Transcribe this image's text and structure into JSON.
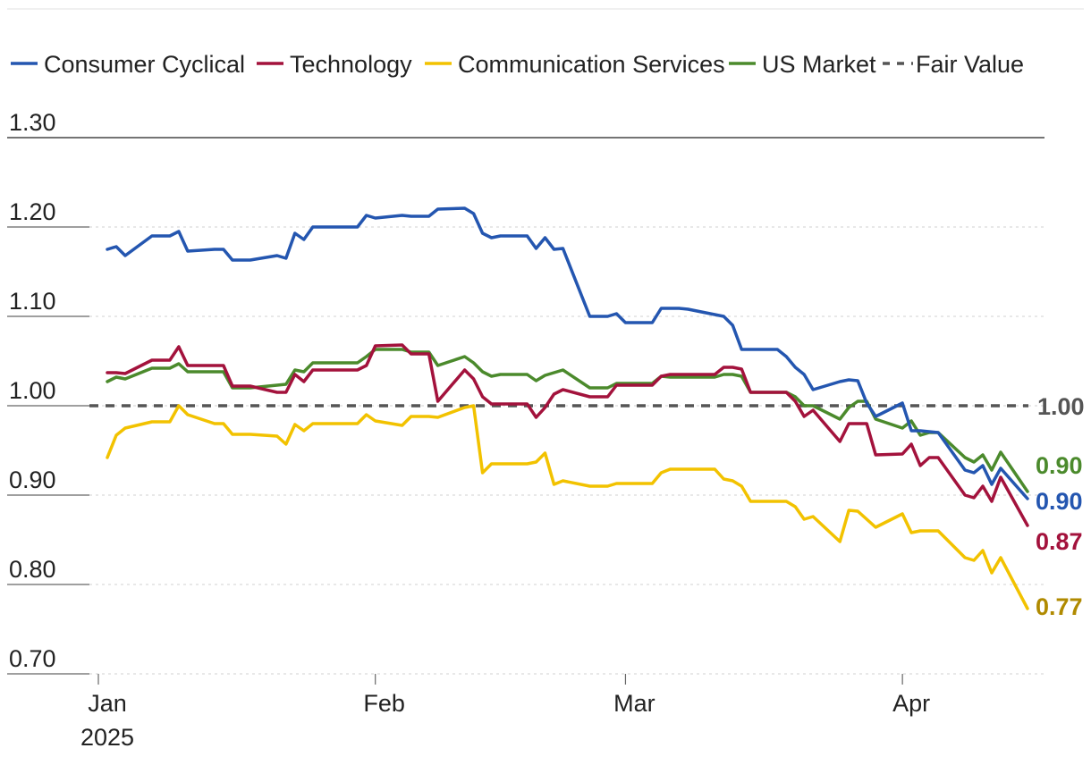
{
  "chart_data": {
    "type": "line",
    "title": "",
    "xlabel": "",
    "ylabel": "",
    "ylim": [
      0.7,
      1.3
    ],
    "y_ticks": [
      "1.30",
      "1.20",
      "1.10",
      "1.00",
      "0.90",
      "0.80",
      "0.70"
    ],
    "y_tick_values": [
      1.3,
      1.2,
      1.1,
      1.0,
      0.9,
      0.8,
      0.7
    ],
    "x_ticks": [
      {
        "label": "Jan",
        "sublabel": "2025",
        "day": 0
      },
      {
        "label": "Feb",
        "sublabel": "",
        "day": 31
      },
      {
        "label": "Mar",
        "sublabel": "",
        "day": 59
      },
      {
        "label": "Apr",
        "sublabel": "",
        "day": 90
      }
    ],
    "x_range_days": [
      0,
      104
    ],
    "grid": true,
    "legend_position": "top",
    "legend": [
      {
        "name": "Consumer Cyclical",
        "color": "#2456b0",
        "style": "solid"
      },
      {
        "name": "Technology",
        "color": "#a3123c",
        "style": "solid"
      },
      {
        "name": "Communication Services",
        "color": "#f2c200",
        "style": "solid"
      },
      {
        "name": "US Market",
        "color": "#4b8a2c",
        "style": "solid"
      },
      {
        "name": "Fair Value",
        "color": "#555555",
        "style": "dashed"
      }
    ],
    "reference_line": {
      "name": "Fair Value",
      "value": 1.0,
      "label": "1.00",
      "color": "#555555"
    },
    "end_labels": [
      {
        "series": "US Market",
        "label": "0.90",
        "color": "#4b8a2c",
        "value": 0.904
      },
      {
        "series": "Consumer Cyclical",
        "label": "0.90",
        "color": "#2456b0",
        "value": 0.896
      },
      {
        "series": "Technology",
        "label": "0.87",
        "color": "#a3123c",
        "value": 0.866
      },
      {
        "series": "Communication Services",
        "label": "0.77",
        "color": "#b08a00",
        "value": 0.773
      }
    ],
    "series": [
      {
        "name": "Consumer Cyclical",
        "color": "#2456b0",
        "x": [
          1,
          2,
          3,
          6,
          7,
          8,
          9,
          10,
          13,
          14,
          15,
          16,
          17,
          20,
          21,
          22,
          23,
          24,
          27,
          28,
          29,
          30,
          31,
          34,
          35,
          36,
          37,
          38,
          41,
          42,
          43,
          44,
          45,
          48,
          49,
          50,
          51,
          52,
          55,
          56,
          57,
          58,
          59,
          62,
          63,
          64,
          65,
          66,
          69,
          70,
          71,
          72,
          73,
          76,
          77,
          78,
          79,
          80,
          83,
          84,
          85,
          86,
          87,
          90,
          91,
          92,
          93,
          94,
          97,
          98,
          99,
          100,
          101,
          104
        ],
        "values": [
          1.175,
          1.178,
          1.168,
          1.19,
          1.19,
          1.19,
          1.195,
          1.173,
          1.175,
          1.175,
          1.163,
          1.163,
          1.163,
          1.168,
          1.165,
          1.193,
          1.186,
          1.2,
          1.2,
          1.2,
          1.2,
          1.213,
          1.21,
          1.213,
          1.212,
          1.212,
          1.212,
          1.22,
          1.221,
          1.215,
          1.193,
          1.188,
          1.19,
          1.19,
          1.176,
          1.188,
          1.175,
          1.176,
          1.1,
          1.1,
          1.1,
          1.103,
          1.093,
          1.093,
          1.109,
          1.109,
          1.109,
          1.108,
          1.102,
          1.1,
          1.09,
          1.063,
          1.063,
          1.063,
          1.055,
          1.043,
          1.035,
          1.018,
          1.027,
          1.029,
          1.028,
          1.003,
          0.988,
          1.003,
          0.972,
          0.972,
          0.971,
          0.97,
          0.928,
          0.925,
          0.933,
          0.912,
          0.93,
          0.896
        ]
      },
      {
        "name": "Technology",
        "color": "#a3123c",
        "x": [
          1,
          2,
          3,
          6,
          7,
          8,
          9,
          10,
          13,
          14,
          15,
          16,
          17,
          20,
          21,
          22,
          23,
          24,
          27,
          28,
          29,
          30,
          31,
          34,
          35,
          36,
          37,
          38,
          41,
          42,
          43,
          44,
          45,
          48,
          49,
          50,
          51,
          52,
          55,
          56,
          57,
          58,
          59,
          62,
          63,
          64,
          65,
          66,
          69,
          70,
          71,
          72,
          73,
          76,
          77,
          78,
          79,
          80,
          83,
          84,
          85,
          86,
          87,
          90,
          91,
          92,
          93,
          94,
          97,
          98,
          99,
          100,
          101,
          104
        ],
        "values": [
          1.037,
          1.037,
          1.036,
          1.051,
          1.051,
          1.051,
          1.066,
          1.045,
          1.045,
          1.045,
          1.022,
          1.022,
          1.022,
          1.015,
          1.015,
          1.035,
          1.027,
          1.04,
          1.04,
          1.04,
          1.04,
          1.045,
          1.067,
          1.068,
          1.058,
          1.058,
          1.058,
          1.005,
          1.04,
          1.03,
          1.01,
          1.002,
          1.002,
          1.002,
          0.987,
          0.998,
          1.013,
          1.018,
          1.01,
          1.01,
          1.01,
          1.023,
          1.023,
          1.023,
          1.033,
          1.035,
          1.035,
          1.035,
          1.035,
          1.043,
          1.043,
          1.041,
          1.015,
          1.015,
          1.015,
          1.005,
          0.988,
          0.995,
          0.96,
          0.98,
          0.98,
          0.98,
          0.945,
          0.946,
          0.957,
          0.933,
          0.942,
          0.942,
          0.9,
          0.897,
          0.91,
          0.893,
          0.92,
          0.866
        ]
      },
      {
        "name": "Communication Services",
        "color": "#f2c200",
        "x": [
          1,
          2,
          3,
          6,
          7,
          8,
          9,
          10,
          13,
          14,
          15,
          16,
          17,
          20,
          21,
          22,
          23,
          24,
          27,
          28,
          29,
          30,
          31,
          34,
          35,
          36,
          37,
          38,
          41,
          42,
          43,
          44,
          45,
          48,
          49,
          50,
          51,
          52,
          55,
          56,
          57,
          58,
          59,
          62,
          63,
          64,
          65,
          66,
          69,
          70,
          71,
          72,
          73,
          76,
          77,
          78,
          79,
          80,
          83,
          84,
          85,
          86,
          87,
          90,
          91,
          92,
          93,
          94,
          97,
          98,
          99,
          100,
          101,
          104
        ],
        "values": [
          0.942,
          0.967,
          0.975,
          0.982,
          0.982,
          0.982,
          1.0,
          0.99,
          0.98,
          0.98,
          0.968,
          0.968,
          0.968,
          0.966,
          0.957,
          0.979,
          0.972,
          0.98,
          0.98,
          0.98,
          0.98,
          0.99,
          0.983,
          0.978,
          0.988,
          0.988,
          0.988,
          0.987,
          0.998,
          1.0,
          0.925,
          0.935,
          0.935,
          0.935,
          0.937,
          0.947,
          0.912,
          0.916,
          0.91,
          0.91,
          0.91,
          0.913,
          0.913,
          0.913,
          0.925,
          0.929,
          0.929,
          0.929,
          0.929,
          0.918,
          0.916,
          0.91,
          0.893,
          0.893,
          0.893,
          0.887,
          0.873,
          0.876,
          0.848,
          0.883,
          0.882,
          0.873,
          0.864,
          0.879,
          0.858,
          0.86,
          0.86,
          0.86,
          0.83,
          0.827,
          0.838,
          0.813,
          0.83,
          0.773
        ]
      },
      {
        "name": "US Market",
        "color": "#4b8a2c",
        "x": [
          1,
          2,
          3,
          6,
          7,
          8,
          9,
          10,
          13,
          14,
          15,
          16,
          17,
          20,
          21,
          22,
          23,
          24,
          27,
          28,
          29,
          30,
          31,
          34,
          35,
          36,
          37,
          38,
          41,
          42,
          43,
          44,
          45,
          48,
          49,
          50,
          51,
          52,
          55,
          56,
          57,
          58,
          59,
          62,
          63,
          64,
          65,
          66,
          69,
          70,
          71,
          72,
          73,
          76,
          77,
          78,
          79,
          80,
          83,
          84,
          85,
          86,
          87,
          90,
          91,
          92,
          93,
          94,
          97,
          98,
          99,
          100,
          101,
          104
        ],
        "values": [
          1.027,
          1.032,
          1.03,
          1.042,
          1.042,
          1.042,
          1.047,
          1.038,
          1.038,
          1.038,
          1.02,
          1.02,
          1.02,
          1.023,
          1.024,
          1.04,
          1.038,
          1.048,
          1.048,
          1.048,
          1.048,
          1.055,
          1.063,
          1.063,
          1.06,
          1.06,
          1.06,
          1.045,
          1.055,
          1.048,
          1.038,
          1.033,
          1.035,
          1.035,
          1.028,
          1.034,
          1.037,
          1.04,
          1.02,
          1.02,
          1.02,
          1.025,
          1.025,
          1.025,
          1.033,
          1.032,
          1.032,
          1.032,
          1.032,
          1.035,
          1.035,
          1.033,
          1.015,
          1.015,
          1.015,
          1.01,
          1.0,
          1.0,
          0.985,
          0.998,
          1.005,
          1.005,
          0.985,
          0.975,
          0.983,
          0.967,
          0.97,
          0.97,
          0.942,
          0.937,
          0.945,
          0.928,
          0.948,
          0.904
        ]
      }
    ]
  }
}
